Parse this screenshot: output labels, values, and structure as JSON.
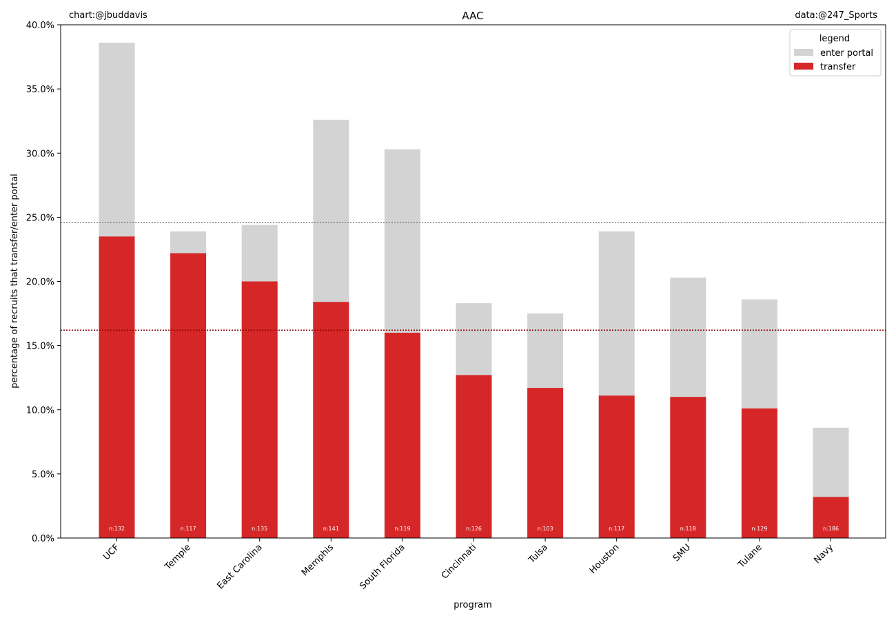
{
  "chart_data": {
    "type": "bar",
    "stacked": false,
    "title": "AAC",
    "credit_left": "chart:@jbuddavis",
    "credit_right": "data:@247_Sports",
    "xlabel": "program",
    "ylabel": "percentage of recruits that transfer/enter portal",
    "ylim": [
      0,
      0.4
    ],
    "yticks": [
      0,
      0.05,
      0.1,
      0.15,
      0.2,
      0.25,
      0.3,
      0.35,
      0.4
    ],
    "ytick_labels": [
      "0.0%",
      "5.0%",
      "10.0%",
      "15.0%",
      "20.0%",
      "25.0%",
      "30.0%",
      "35.0%",
      "40.0%"
    ],
    "categories": [
      "UCF",
      "Temple",
      "East Carolina",
      "Memphis",
      "South Florida",
      "Cincinnati",
      "Tulsa",
      "Houston",
      "SMU",
      "Tulane",
      "Navy"
    ],
    "series": [
      {
        "name": "enter portal",
        "color": "#d3d3d3",
        "values": [
          0.386,
          0.239,
          0.244,
          0.326,
          0.303,
          0.183,
          0.175,
          0.239,
          0.203,
          0.186,
          0.086
        ]
      },
      {
        "name": "transfer",
        "color": "#d62728",
        "values": [
          0.235,
          0.222,
          0.2,
          0.184,
          0.16,
          0.127,
          0.117,
          0.111,
          0.11,
          0.101,
          0.032
        ]
      }
    ],
    "n_labels": [
      "n:132",
      "n:117",
      "n:135",
      "n:141",
      "n:119",
      "n:126",
      "n:103",
      "n:117",
      "n:118",
      "n:129",
      "n:186"
    ],
    "reference_lines": [
      {
        "value": 0.246,
        "color": "#808080",
        "style": "dotted"
      },
      {
        "value": 0.162,
        "color": "#8b0000",
        "style": "dotted"
      }
    ],
    "legend": {
      "title": "legend",
      "placement": "top-right"
    },
    "grid": false
  }
}
